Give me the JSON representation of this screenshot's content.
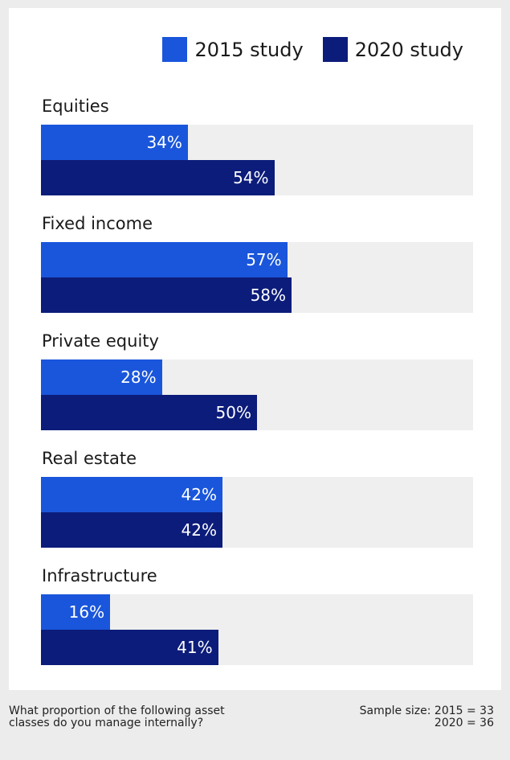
{
  "legend": {
    "items": [
      {
        "label": "2015 study",
        "color": "#1a56db"
      },
      {
        "label": "2020 study",
        "color": "#0c1c7a"
      }
    ]
  },
  "chart_data": {
    "type": "bar",
    "orientation": "horizontal",
    "categories": [
      "Equities",
      "Fixed income",
      "Private equity",
      "Real estate",
      "Infrastructure"
    ],
    "series": [
      {
        "name": "2015 study",
        "values": [
          34,
          57,
          28,
          42,
          16
        ],
        "labels": [
          "34%",
          "57%",
          "28%",
          "42%",
          "16%"
        ],
        "color": "#1a56db"
      },
      {
        "name": "2020 study",
        "values": [
          54,
          58,
          50,
          42,
          41
        ],
        "labels": [
          "54%",
          "58%",
          "50%",
          "42%",
          "41%"
        ],
        "color": "#0c1c7a"
      }
    ],
    "xlim": [
      0,
      100
    ],
    "grid": false,
    "legend_position": "top-right"
  },
  "footer": {
    "question_line1": "What proportion of the following asset",
    "question_line2": "classes do you manage internally?",
    "sample_line1": "Sample size: 2015 = 33",
    "sample_line2": "2020 = 36"
  }
}
